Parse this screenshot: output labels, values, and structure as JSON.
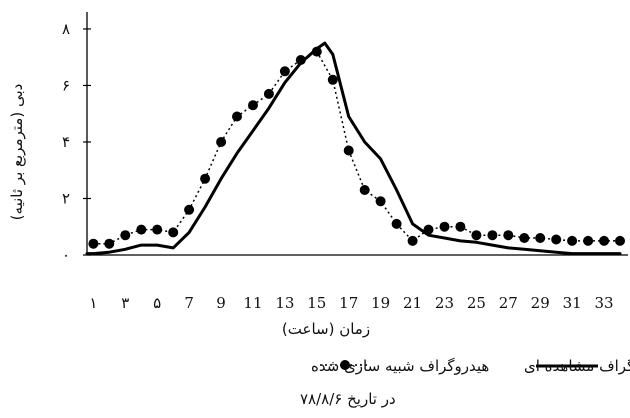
{
  "chart_data": {
    "type": "line",
    "xlabel": "زمان (ساعت)",
    "ylabel": "دبی (مترمربع بر ثانیه)",
    "x_ticks": [
      1,
      3,
      5,
      7,
      9,
      11,
      13,
      15,
      17,
      19,
      21,
      23,
      25,
      27,
      29,
      31,
      33
    ],
    "x_tick_labels": [
      "۱",
      "۳",
      "۵",
      "7",
      "9",
      "11",
      "13",
      "15",
      "17",
      "19",
      "21",
      "23",
      "25",
      "27",
      "29",
      "31",
      "33"
    ],
    "y_ticks": [
      0,
      2,
      4,
      6,
      8
    ],
    "y_tick_labels": [
      "۰",
      "۲",
      "۴",
      "۶",
      "۸"
    ],
    "xlim": [
      0.6,
      34.5
    ],
    "ylim": [
      0,
      8.6
    ],
    "grid": false,
    "legend_position": "bottom",
    "legend_note": "در تاریخ ۷۸/۸/۶",
    "series": [
      {
        "name": "هیدروگراف مشاهده ای",
        "style": "solid",
        "x": [
          0.6,
          1,
          2,
          3,
          4,
          5,
          6,
          7,
          8,
          9,
          10,
          11,
          12,
          13,
          14,
          15,
          15.5,
          16,
          17,
          18,
          19,
          20,
          21,
          22,
          23,
          24,
          25,
          26,
          27,
          28,
          29,
          30,
          31,
          32,
          33,
          34
        ],
        "y": [
          0.05,
          0.05,
          0.1,
          0.2,
          0.35,
          0.35,
          0.25,
          0.8,
          1.7,
          2.7,
          3.6,
          4.4,
          5.2,
          6.1,
          6.8,
          7.3,
          7.5,
          7.1,
          4.9,
          4,
          3.4,
          2.3,
          1.1,
          0.7,
          0.6,
          0.5,
          0.45,
          0.35,
          0.25,
          0.2,
          0.15,
          0.1,
          0.05,
          0.05,
          0.05,
          0.05
        ]
      },
      {
        "name": "هیدروگراف شبیه سازی شده",
        "style": "dotted-with-markers",
        "x": [
          1,
          2,
          3,
          4,
          5,
          6,
          7,
          8,
          9,
          10,
          11,
          12,
          13,
          14,
          15,
          16,
          17,
          18,
          19,
          20,
          21,
          22,
          23,
          24,
          25,
          26,
          27,
          28,
          29,
          30,
          31,
          32,
          33,
          34
        ],
        "y": [
          0.4,
          0.4,
          0.7,
          0.9,
          0.9,
          0.8,
          1.6,
          2.7,
          4,
          4.9,
          5.3,
          5.7,
          6.5,
          6.9,
          7.2,
          6.2,
          3.7,
          2.3,
          1.9,
          1.1,
          0.5,
          0.9,
          1,
          1,
          0.7,
          0.7,
          0.7,
          0.6,
          0.6,
          0.55,
          0.5,
          0.5,
          0.5,
          0.5
        ]
      }
    ]
  }
}
